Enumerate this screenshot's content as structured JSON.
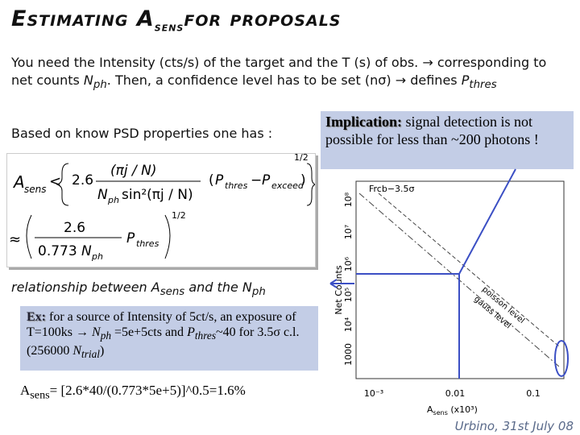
{
  "header": {
    "title": [
      "Estimating A",
      "sens",
      "for proposals"
    ]
  },
  "intro": [
    "You need the Intensity (cts/s) of the target and the T (s) of obs. → corresponding to net counts ",
    "N",
    "ph",
    ". Then, a confidence level has to be set (nσ) → defines ",
    "P",
    "thres"
  ],
  "lead": "Based on know PSD properties one has :",
  "implication": {
    "label": "Implication:",
    "text": " signal detection is not possible for less than ~200 photons !"
  },
  "equation": {
    "a": "A",
    "a_sub": "sens",
    "lt": "<",
    "coef": "2.6",
    "num": "(πj / N)",
    "den_n": "N",
    "den_sub": "ph",
    "den_sin": "sin²(πj / N)",
    "pt": "P",
    "pt_sub": "thres",
    "minus": "−",
    "pe": "P",
    "pe_sub": "exceed",
    "exp": "1/2",
    "approx": "≈",
    "coef2": "2.6",
    "den2": "0.773",
    "den2_n": "N",
    "den2_sub": "ph",
    "pt2": "P",
    "pt2_sub": "thres",
    "exp2": "1/2"
  },
  "relation": [
    "relationship between ",
    "A",
    "sens",
    " and the ",
    "N",
    "ph"
  ],
  "example": {
    "label": "Ex:",
    "text": [
      " for a source of Intensity of 5ct/s, an exposure of T=100ks → ",
      "N",
      "ph",
      " =5e+5cts and ",
      "P",
      "thres",
      "~40 for 3.5σ c.l. (256000 ",
      "N",
      "trial",
      ")"
    ]
  },
  "result": [
    "A",
    "sens",
    "= [2.6*40/(0.773*5e+5)]^0.5=1.6%"
  ],
  "plot": {
    "title": "Frcb−3.5σ",
    "ylabel": "Net Counts",
    "yticks": [
      "1000",
      "10⁴",
      "10⁵",
      "10⁶",
      "10⁷",
      "10⁸"
    ],
    "xticks": [
      "10⁻³",
      "0.01",
      "0.1"
    ],
    "xlabel": "A",
    "xlabel_sub": "sens",
    "xlabel_unit": " (x10³)",
    "curves": [
      "poisson level",
      "gauss level"
    ]
  },
  "footer": "Urbino, 31st July 08"
}
